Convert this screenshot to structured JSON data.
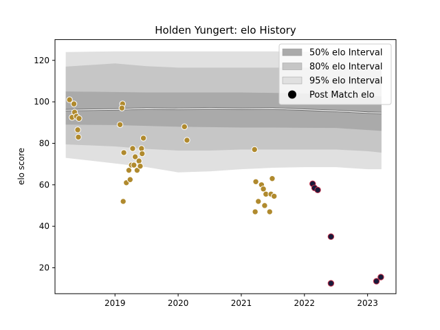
{
  "chart_data": {
    "type": "scatter",
    "title": "Holden Yungert: elo History",
    "xlabel": "",
    "ylabel": "elo score",
    "xlim": [
      2018.05,
      2023.45
    ],
    "ylim": [
      7.5,
      130
    ],
    "x_ticks": [
      2019,
      2020,
      2021,
      2022,
      2023
    ],
    "x_tick_labels": [
      "2019",
      "2020",
      "2021",
      "2022",
      "2023"
    ],
    "y_ticks": [
      20,
      40,
      60,
      80,
      100,
      120
    ],
    "y_tick_labels": [
      "20",
      "40",
      "60",
      "80",
      "100",
      "120"
    ],
    "grid": false,
    "legend": {
      "placement": "top-right",
      "entries": [
        {
          "label": "50% elo Interval",
          "kind": "band",
          "color": "#aaaaaa"
        },
        {
          "label": "80% elo Interval",
          "kind": "band",
          "color": "#c6c6c6"
        },
        {
          "label": "95% elo Interval",
          "kind": "band",
          "color": "#e0e0e0"
        },
        {
          "label": "Post Match elo",
          "kind": "marker",
          "color": "#000000"
        }
      ]
    },
    "bands": {
      "x": [
        2018.22,
        2019.0,
        2019.5,
        2020.0,
        2020.5,
        2021.0,
        2021.5,
        2022.0,
        2022.5,
        2023.0,
        2023.22
      ],
      "mean": [
        96.0,
        96.3,
        96.8,
        96.6,
        96.9,
        96.7,
        96.8,
        96.2,
        95.6,
        94.8,
        94.6
      ],
      "p50_low": [
        89.0,
        88.8,
        88.4,
        88.0,
        87.8,
        87.6,
        87.6,
        87.5,
        87.4,
        86.4,
        86.0
      ],
      "p50_high": [
        105.0,
        104.7,
        104.5,
        104.5,
        104.5,
        104.5,
        104.3,
        104.0,
        103.4,
        102.9,
        102.6
      ],
      "p80_low": [
        79.5,
        78.5,
        77.3,
        76.5,
        76.5,
        77.0,
        77.0,
        77.0,
        77.0,
        76.2,
        75.5
      ],
      "p80_high": [
        117.0,
        118.5,
        117.2,
        116.5,
        116.5,
        116.5,
        116.5,
        116.5,
        116.2,
        115.8,
        115.3
      ],
      "p95_low": [
        73.0,
        70.3,
        68.5,
        66.0,
        66.5,
        67.5,
        68.2,
        68.5,
        68.5,
        67.5,
        67.5
      ],
      "p95_high": [
        124.0,
        124.3,
        124.3,
        124.3,
        124.3,
        124.3,
        124.3,
        124.2,
        123.5,
        122.5,
        121.7
      ],
      "band_colors": {
        "p50": "#aaaaaa",
        "p80": "#c6c6c6",
        "p95": "#e0e0e0"
      },
      "mean_color": "#ffffff",
      "mean_edge_color": "#666666"
    },
    "series": [
      {
        "marker_face": "#b08a2e",
        "marker_edge": "#ffffff",
        "points": [
          [
            2018.28,
            101
          ],
          [
            2018.32,
            92.5
          ],
          [
            2018.35,
            99
          ],
          [
            2018.36,
            95
          ],
          [
            2018.39,
            93
          ],
          [
            2018.41,
            86.5
          ],
          [
            2018.43,
            92
          ],
          [
            2018.42,
            83
          ],
          [
            2019.08,
            89
          ],
          [
            2019.12,
            99
          ],
          [
            2019.11,
            97
          ],
          [
            2019.14,
            75.5
          ],
          [
            2019.13,
            52
          ],
          [
            2019.18,
            61
          ],
          [
            2019.22,
            67
          ],
          [
            2019.24,
            62.5
          ],
          [
            2019.26,
            69.5
          ],
          [
            2019.28,
            77.5
          ],
          [
            2019.3,
            69.5
          ],
          [
            2019.32,
            73.5
          ],
          [
            2019.35,
            67
          ],
          [
            2019.38,
            71.5
          ],
          [
            2019.4,
            69
          ],
          [
            2019.42,
            77.5
          ],
          [
            2019.43,
            75
          ],
          [
            2019.45,
            82.5
          ],
          [
            2020.1,
            88
          ],
          [
            2020.14,
            81.5
          ],
          [
            2021.21,
            77
          ],
          [
            2021.22,
            47
          ],
          [
            2021.23,
            61.5
          ],
          [
            2021.27,
            52
          ],
          [
            2021.32,
            60
          ],
          [
            2021.35,
            58
          ],
          [
            2021.37,
            50
          ],
          [
            2021.39,
            55.5
          ],
          [
            2021.45,
            47
          ],
          [
            2021.47,
            55.5
          ],
          [
            2021.49,
            63
          ],
          [
            2021.52,
            54.5
          ]
        ]
      },
      {
        "marker_face": "#1a1a3a",
        "marker_edge": "#c0304a",
        "points": [
          [
            2022.13,
            60.5
          ],
          [
            2022.16,
            58.5
          ],
          [
            2022.21,
            57.5
          ],
          [
            2022.42,
            35
          ],
          [
            2022.42,
            12.5
          ],
          [
            2023.14,
            13.5
          ],
          [
            2023.21,
            15.5
          ]
        ]
      }
    ]
  }
}
